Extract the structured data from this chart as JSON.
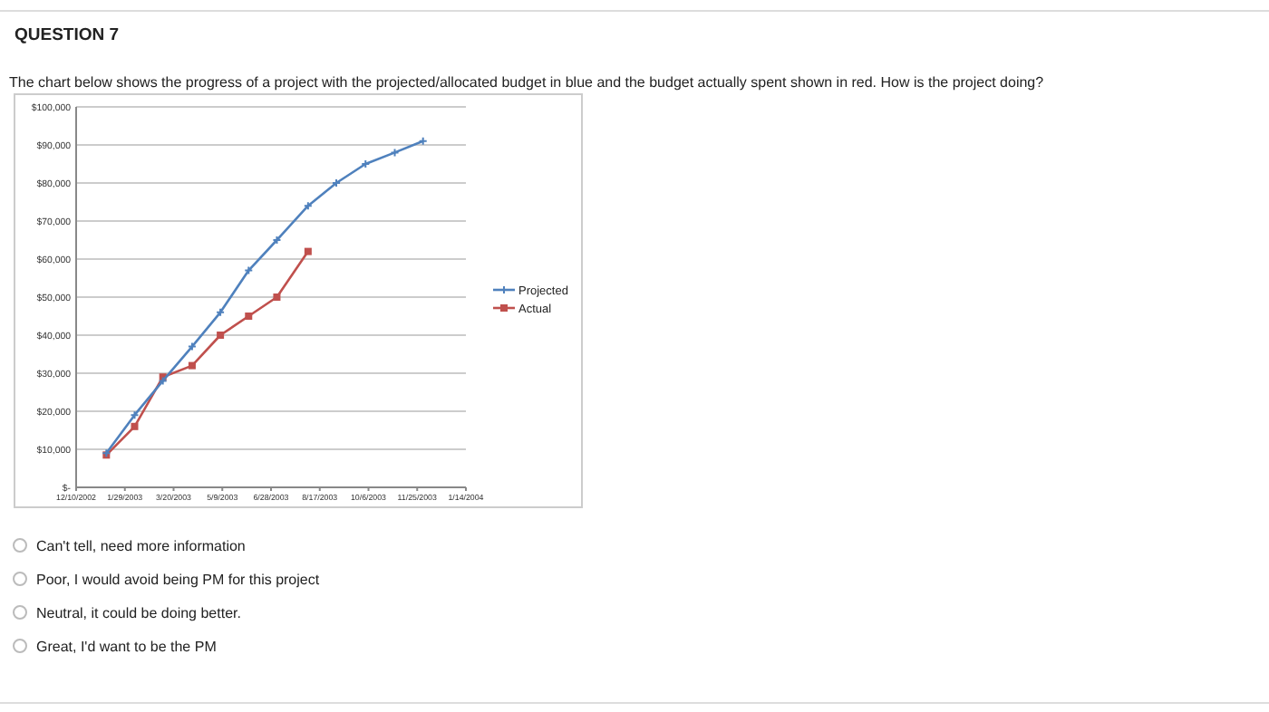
{
  "chart_data": {
    "type": "line",
    "title": "QUESTION 7",
    "subtitle": "The chart below shows the progress of a project with the projected/allocated budget in blue and the budget actually spent shown in red. How is the project doing?",
    "annotations": [
      "Can't tell, need more information",
      "Poor, I would avoid being PM for this project",
      "Neutral, it could be doing better.",
      "Great, I'd want to be the PM"
    ],
    "series": [
      {
        "name": "Projected",
        "color": "#4f81bd",
        "x": [
          "2003-01-10",
          "2003-02-08",
          "2003-03-09",
          "2003-04-08",
          "2003-05-07",
          "2003-06-05",
          "2003-07-04",
          "2003-08-05",
          "2003-09-03",
          "2003-10-03",
          "2003-11-02",
          "2003-12-01"
        ],
        "values": [
          9000,
          19000,
          28000,
          37000,
          46000,
          57000,
          65000,
          74000,
          80000,
          85000,
          88000,
          91000
        ],
        "marker": "cross"
      },
      {
        "name": "Actual",
        "color": "#c0504d",
        "x": [
          "2003-01-10",
          "2003-02-08",
          "2003-03-09",
          "2003-04-08",
          "2003-05-07",
          "2003-06-05",
          "2003-07-04",
          "2003-08-05"
        ],
        "values": [
          8500,
          16000,
          29000,
          32000,
          40000,
          45000,
          50000,
          62000
        ],
        "marker": "square"
      }
    ],
    "xlim": [
      "2002-12-10",
      "2004-01-14"
    ],
    "xticks": [
      {
        "value": "2002-12-10",
        "label": "12/10/2002"
      },
      {
        "value": "2003-01-29",
        "label": "1/29/2003"
      },
      {
        "value": "2003-03-20",
        "label": "3/20/2003"
      },
      {
        "value": "2003-05-09",
        "label": "5/9/2003"
      },
      {
        "value": "2003-06-28",
        "label": "6/28/2003"
      },
      {
        "value": "2003-08-17",
        "label": "8/17/2003"
      },
      {
        "value": "2003-10-06",
        "label": "10/6/2003"
      },
      {
        "value": "2003-11-25",
        "label": "11/25/2003"
      },
      {
        "value": "2004-01-14",
        "label": "1/14/2004"
      }
    ],
    "ylim": [
      0,
      100000
    ],
    "yticks": [
      {
        "value": 0,
        "label": "$-"
      },
      {
        "value": 10000,
        "label": "$10,000"
      },
      {
        "value": 20000,
        "label": "$20,000"
      },
      {
        "value": 30000,
        "label": "$30,000"
      },
      {
        "value": 40000,
        "label": "$40,000"
      },
      {
        "value": 50000,
        "label": "$50,000"
      },
      {
        "value": 60000,
        "label": "$60,000"
      },
      {
        "value": 70000,
        "label": "$70,000"
      },
      {
        "value": 80000,
        "label": "$80,000"
      },
      {
        "value": 90000,
        "label": "$90,000"
      },
      {
        "value": 100000,
        "label": "$100,000"
      }
    ],
    "grid": "y",
    "legend": "right",
    "line_style": "solid"
  }
}
